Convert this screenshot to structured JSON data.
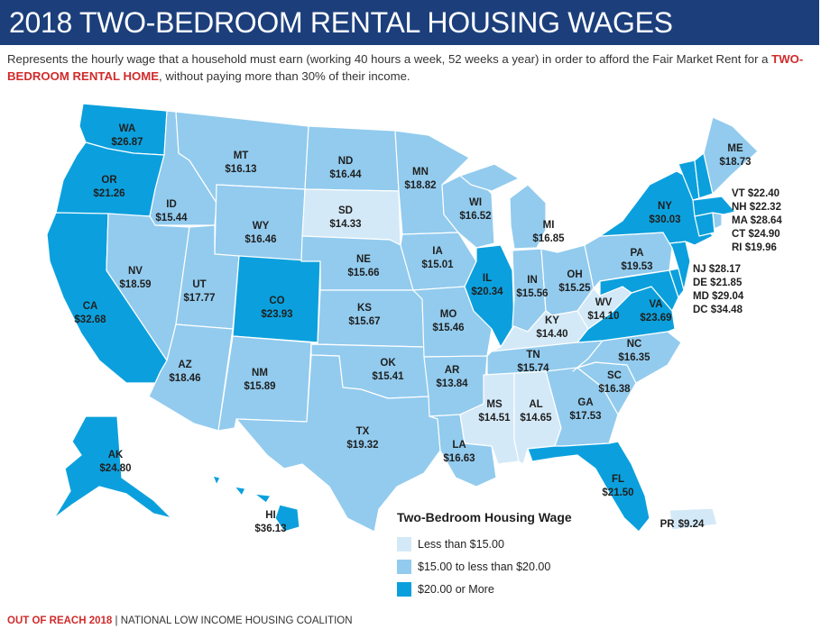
{
  "title": "2018 TWO-BEDROOM RENTAL HOUSING WAGES",
  "subtitle_pre": "Represents the hourly wage that a household must earn (working 40 hours a week, 52 weeks a year) in order to afford the Fair Market Rent for a",
  "subtitle_highlight": "TWO-BEDROOM RENTAL HOME",
  "subtitle_post": ", without paying more than 30% of their income.",
  "colors": {
    "low": "#d4e9f7",
    "mid": "#92cbee",
    "high": "#0ba0dd",
    "border": "#ffffff",
    "banner": "#1c3f7c",
    "accent": "#d12b2b"
  },
  "legend": {
    "title": "Two-Bedroom Housing Wage",
    "items": [
      {
        "label": "Less than $15.00",
        "color": "#d4e9f7"
      },
      {
        "label": "$15.00 to less than $20.00",
        "color": "#92cbee"
      },
      {
        "label": "$20.00 or More",
        "color": "#0ba0dd"
      }
    ]
  },
  "states": {
    "WA": "$26.87",
    "OR": "$21.26",
    "CA": "$32.68",
    "ID": "$15.44",
    "NV": "$18.59",
    "MT": "$16.13",
    "WY": "$16.46",
    "UT": "$17.77",
    "AZ": "$18.46",
    "CO": "$23.93",
    "NM": "$15.89",
    "ND": "$16.44",
    "SD": "$14.33",
    "NE": "$15.66",
    "KS": "$15.67",
    "OK": "$15.41",
    "TX": "$19.32",
    "MN": "$18.82",
    "IA": "$15.01",
    "MO": "$15.46",
    "AR": "$13.84",
    "LA": "$16.63",
    "WI": "$16.52",
    "IL": "$20.34",
    "MI": "$16.85",
    "IN": "$15.56",
    "OH": "$15.25",
    "KY": "$14.40",
    "TN": "$15.74",
    "MS": "$14.51",
    "AL": "$14.65",
    "GA": "$17.53",
    "FL": "$21.50",
    "SC": "$16.38",
    "NC": "$16.35",
    "VA": "$23.69",
    "WV": "$14.10",
    "PA": "$19.53",
    "NY": "$30.03",
    "ME": "$18.73",
    "AK": "$24.80",
    "HI": "$36.13",
    "PR": "$9.24"
  },
  "callouts": {
    "VT": "VT $22.40",
    "NH": "NH $22.32",
    "MA": "MA $28.64",
    "CT": "CT $24.90",
    "RI": "RI $19.96",
    "NJ": "NJ $28.17",
    "DE": "DE $21.85",
    "MD": "MD $29.04",
    "DC": "DC $34.48"
  },
  "footer_brand": "OUT OF REACH 2018",
  "footer_sep": " | ",
  "footer_org": "NATIONAL LOW INCOME HOUSING COALITION"
}
